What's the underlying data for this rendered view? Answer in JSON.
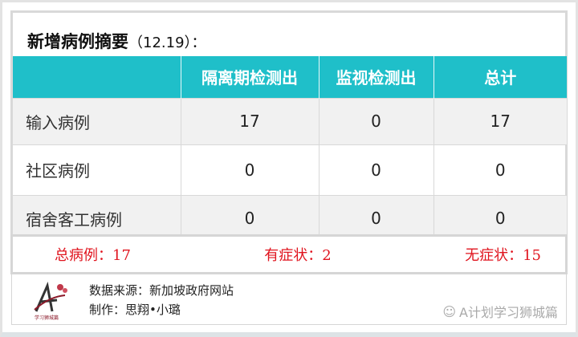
{
  "title": {
    "main": "新增病例摘要",
    "date": "（12.19）："
  },
  "table": {
    "headers": [
      "",
      "隔离期检测出",
      "监视检测出",
      "总计"
    ],
    "rows": [
      {
        "label": "输入病例",
        "values": [
          "17",
          "0",
          "17"
        ]
      },
      {
        "label": "社区病例",
        "values": [
          "0",
          "0",
          "0"
        ]
      },
      {
        "label": "宿舍客工病例",
        "values": [
          "0",
          "0",
          "0"
        ]
      }
    ]
  },
  "summary": {
    "total": "总病例：17",
    "symptomatic": "有症状：2",
    "asymptomatic": "无症状：15"
  },
  "footer": {
    "source": "数据来源：新加坡政府网站",
    "author": "制作：思翔•小璐",
    "watermark": "A计划学习狮城篇",
    "logo_text": "学习狮城篇"
  },
  "colors": {
    "header": "#1fbfc9",
    "summary_text": "#e0141e"
  }
}
